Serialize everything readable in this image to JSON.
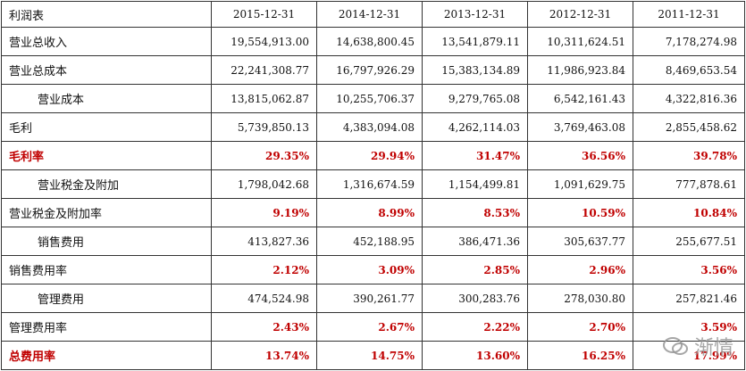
{
  "table": {
    "header": [
      "利润表",
      "2015-12-31",
      "2014-12-31",
      "2013-12-31",
      "2012-12-31",
      "2011-12-31"
    ],
    "rows": [
      {
        "label": "营业总收入",
        "values": [
          "19,554,913.00",
          "14,638,800.45",
          "13,541,879.11",
          "10,311,624.51",
          "7,178,274.98"
        ],
        "indent": false,
        "red_label": false,
        "red_values": false
      },
      {
        "label": "营业总成本",
        "values": [
          "22,241,308.77",
          "16,797,926.29",
          "15,383,134.89",
          "11,986,923.84",
          "8,469,653.54"
        ],
        "indent": false,
        "red_label": false,
        "red_values": false
      },
      {
        "label": "营业成本",
        "values": [
          "13,815,062.87",
          "10,255,706.37",
          "9,279,765.08",
          "6,542,161.43",
          "4,322,816.36"
        ],
        "indent": true,
        "red_label": false,
        "red_values": false
      },
      {
        "label": "毛利",
        "values": [
          "5,739,850.13",
          "4,383,094.08",
          "4,262,114.03",
          "3,769,463.08",
          "2,855,458.62"
        ],
        "indent": false,
        "red_label": false,
        "red_values": false
      },
      {
        "label": "毛利率",
        "values": [
          "29.35%",
          "29.94%",
          "31.47%",
          "36.56%",
          "39.78%"
        ],
        "indent": false,
        "red_label": true,
        "red_values": true
      },
      {
        "label": "营业税金及附加",
        "values": [
          "1,798,042.68",
          "1,316,674.59",
          "1,154,499.81",
          "1,091,629.75",
          "777,878.61"
        ],
        "indent": true,
        "red_label": false,
        "red_values": false
      },
      {
        "label": "营业税金及附加率",
        "values": [
          "9.19%",
          "8.99%",
          "8.53%",
          "10.59%",
          "10.84%"
        ],
        "indent": false,
        "red_label": false,
        "red_values": true
      },
      {
        "label": "销售费用",
        "values": [
          "413,827.36",
          "452,188.95",
          "386,471.36",
          "305,637.77",
          "255,677.51"
        ],
        "indent": true,
        "red_label": false,
        "red_values": false
      },
      {
        "label": "销售费用率",
        "values": [
          "2.12%",
          "3.09%",
          "2.85%",
          "2.96%",
          "3.56%"
        ],
        "indent": false,
        "red_label": false,
        "red_values": true
      },
      {
        "label": "管理费用",
        "values": [
          "474,524.98",
          "390,261.77",
          "300,283.76",
          "278,030.80",
          "257,821.46"
        ],
        "indent": true,
        "red_label": false,
        "red_values": false
      },
      {
        "label": "管理费用率",
        "values": [
          "2.43%",
          "2.67%",
          "2.22%",
          "2.70%",
          "3.59%"
        ],
        "indent": false,
        "red_label": false,
        "red_values": true
      },
      {
        "label": "总费用率",
        "values": [
          "13.74%",
          "14.75%",
          "13.60%",
          "16.25%",
          "17.99%"
        ],
        "indent": false,
        "red_label": true,
        "red_values": true
      }
    ]
  },
  "watermark": {
    "text": "渐情"
  }
}
